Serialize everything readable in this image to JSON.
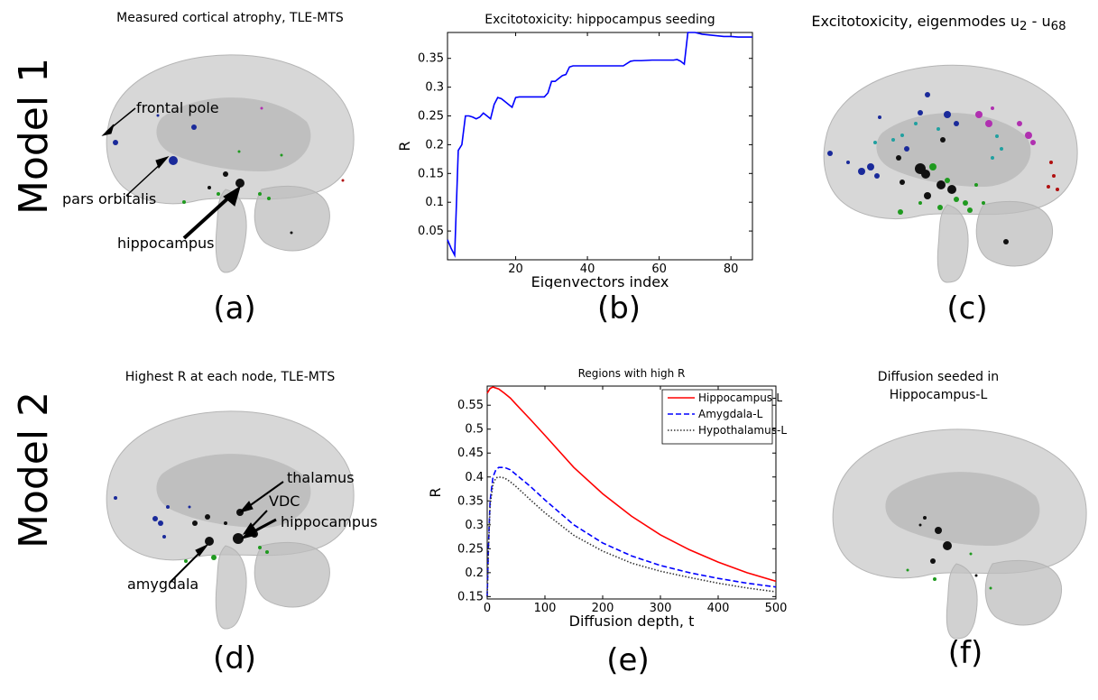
{
  "row_labels": [
    "Model 1",
    "Model 2"
  ],
  "panels": {
    "a": {
      "title": "Measured cortical atrophy, TLE-MTS",
      "label": "(a)",
      "annotations": [
        "frontal pole",
        "pars orbitalis",
        "hippocampus"
      ]
    },
    "b": {
      "label": "(b)"
    },
    "c": {
      "title": "Excitotoxicity, eigenmodes u",
      "sub1": "2",
      "mid": " - u",
      "sub2": "68",
      "label": "(c)"
    },
    "d": {
      "title": "Highest R at each node, TLE-MTS",
      "label": "(d)",
      "annotations": [
        "thalamus",
        "VDC",
        "hippocampus",
        "amygdala"
      ]
    },
    "e": {
      "label": "(e)"
    },
    "f": {
      "title_line1": "Diffusion seeded in",
      "title_line2": "Hippocampus-L",
      "label": "(f)"
    }
  },
  "colors": {
    "node_blue": "#1a2a9a",
    "node_green": "#1f9a1f",
    "node_black": "#111111",
    "node_magenta": "#b030b0",
    "node_cyan": "#20a0a0",
    "node_red": "#b01010",
    "brain_fill": "#c8c8c8"
  },
  "chart_data": [
    {
      "type": "line",
      "title": "Excitotoxicity: hippocampus seeding",
      "xlabel": "Eigenvectors index",
      "ylabel": "R",
      "xlim": [
        1,
        86
      ],
      "ylim": [
        0,
        0.395
      ],
      "xticks": [
        20,
        40,
        60,
        80
      ],
      "yticks": [
        0.05,
        0.1,
        0.15,
        0.2,
        0.25,
        0.3,
        0.35
      ],
      "grid": false,
      "series": [
        {
          "color": "#0000ff",
          "x": [
            1,
            2,
            3,
            4,
            5,
            6,
            7,
            8,
            9,
            10,
            11,
            12,
            13,
            14,
            15,
            16,
            17,
            18,
            19,
            20,
            21,
            22,
            23,
            24,
            25,
            26,
            27,
            28,
            29,
            30,
            31,
            32,
            33,
            34,
            35,
            36,
            37,
            40,
            45,
            50,
            52,
            53,
            55,
            58,
            60,
            62,
            64,
            65,
            66,
            67,
            68,
            70,
            72,
            75,
            78,
            80,
            82,
            84,
            86
          ],
          "y": [
            0.035,
            0.02,
            0.008,
            0.19,
            0.2,
            0.25,
            0.25,
            0.248,
            0.245,
            0.248,
            0.255,
            0.25,
            0.245,
            0.27,
            0.282,
            0.28,
            0.275,
            0.27,
            0.265,
            0.282,
            0.283,
            0.283,
            0.283,
            0.283,
            0.283,
            0.283,
            0.283,
            0.283,
            0.29,
            0.31,
            0.31,
            0.315,
            0.32,
            0.322,
            0.335,
            0.337,
            0.337,
            0.337,
            0.337,
            0.337,
            0.345,
            0.346,
            0.346,
            0.347,
            0.347,
            0.347,
            0.347,
            0.348,
            0.345,
            0.34,
            0.395,
            0.395,
            0.392,
            0.39,
            0.388,
            0.388,
            0.387,
            0.387,
            0.387
          ]
        }
      ]
    },
    {
      "type": "line",
      "title": "Regions with high R",
      "xlabel": "Diffusion depth, t",
      "ylabel": "R",
      "xlim": [
        0,
        500
      ],
      "ylim": [
        0.145,
        0.59
      ],
      "xticks": [
        0,
        100,
        200,
        300,
        400,
        500
      ],
      "yticks": [
        0.15,
        0.2,
        0.25,
        0.3,
        0.35,
        0.4,
        0.45,
        0.5,
        0.55
      ],
      "grid": false,
      "legend": "top-right",
      "series": [
        {
          "name": "Hippocampus-L",
          "color": "#ff0000",
          "dash": "solid",
          "x": [
            0,
            5,
            10,
            20,
            30,
            40,
            50,
            75,
            100,
            150,
            200,
            250,
            300,
            350,
            400,
            450,
            500
          ],
          "y": [
            0.575,
            0.585,
            0.588,
            0.584,
            0.575,
            0.565,
            0.552,
            0.52,
            0.487,
            0.42,
            0.365,
            0.318,
            0.279,
            0.248,
            0.222,
            0.2,
            0.182
          ]
        },
        {
          "name": "Amygdala-L",
          "color": "#0000ff",
          "dash": "dashed",
          "x": [
            0,
            2,
            5,
            10,
            15,
            20,
            30,
            40,
            50,
            75,
            100,
            150,
            200,
            250,
            300,
            350,
            400,
            450,
            500
          ],
          "y": [
            0.15,
            0.25,
            0.35,
            0.4,
            0.415,
            0.42,
            0.42,
            0.415,
            0.405,
            0.38,
            0.352,
            0.3,
            0.262,
            0.235,
            0.215,
            0.2,
            0.188,
            0.178,
            0.17
          ]
        },
        {
          "name": "Hypothalamus-L",
          "color": "#333333",
          "dash": "dotted",
          "x": [
            0,
            2,
            5,
            10,
            15,
            20,
            30,
            40,
            50,
            75,
            100,
            150,
            200,
            250,
            300,
            350,
            400,
            450,
            500
          ],
          "y": [
            0.15,
            0.24,
            0.34,
            0.385,
            0.398,
            0.4,
            0.398,
            0.39,
            0.38,
            0.352,
            0.325,
            0.278,
            0.245,
            0.22,
            0.203,
            0.19,
            0.178,
            0.168,
            0.16
          ]
        }
      ]
    }
  ]
}
